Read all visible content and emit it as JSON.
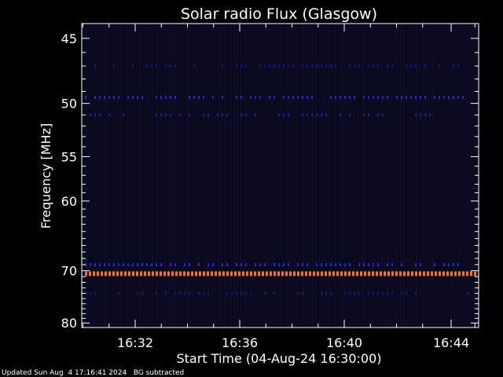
{
  "chart_data": {
    "type": "heatmap",
    "title": "Solar radio Flux (Glasgow)",
    "xlabel": "Start Time (04-Aug-24 16:30:00)",
    "ylabel_main": "Frequency ",
    "ylabel_unit": "[MHz]",
    "x_range_minutes": [
      16.5,
      16.7333
    ],
    "x_ticks": [
      "16:32",
      "16:36",
      "16:40",
      "16:44"
    ],
    "x_tick_minutes": [
      16.5333,
      16.6,
      16.6667,
      16.7333
    ],
    "y_ticks": [
      45,
      50,
      55,
      60,
      70,
      80
    ],
    "y_scale": "reciprocal",
    "y_range": [
      44,
      81
    ],
    "background_color": "#0a0a1f",
    "emission_bands": [
      {
        "freq_mhz": 47,
        "color": "#1a1aa8",
        "intensity": "weak"
      },
      {
        "freq_mhz": 49.5,
        "color": "#2b2bd8",
        "intensity": "moderate"
      },
      {
        "freq_mhz": 51,
        "color": "#2525c0",
        "intensity": "weak"
      },
      {
        "freq_mhz": 69,
        "color": "#2a2ae0",
        "intensity": "moderate"
      },
      {
        "freq_mhz": 70.5,
        "color": "#ff7a1a",
        "intensity": "strong"
      },
      {
        "freq_mhz": 74,
        "color": "#1e1e9a",
        "intensity": "weak"
      }
    ]
  },
  "footer": {
    "updated": "Updated Sun Aug  4 17:16:41 2024",
    "bg_note": "BG subtracted"
  }
}
